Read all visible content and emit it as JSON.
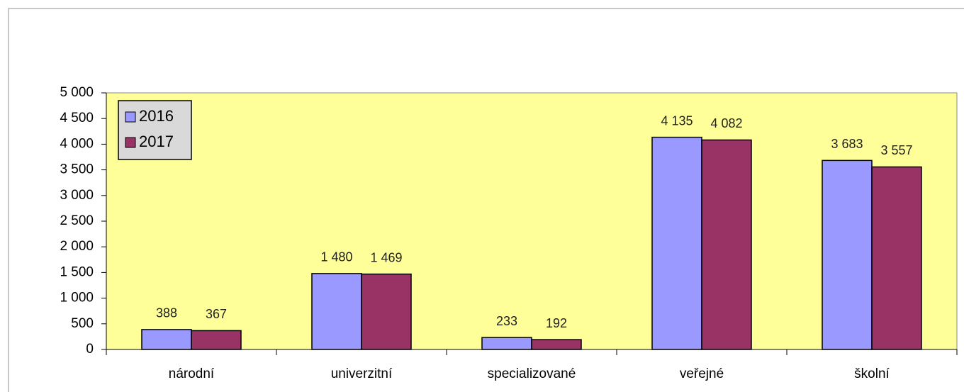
{
  "chart_data": {
    "type": "bar",
    "categories": [
      "národní",
      "univerzitní",
      "specializované",
      "veřejné",
      "školní"
    ],
    "series": [
      {
        "name": "2016",
        "color": "#9999ff",
        "values": [
          388,
          1480,
          233,
          4135,
          3683
        ],
        "value_labels": [
          "388",
          "1 480",
          "233",
          "4 135",
          "3 683"
        ]
      },
      {
        "name": "2017",
        "color": "#993366",
        "values": [
          367,
          1469,
          192,
          4082,
          3557
        ],
        "value_labels": [
          "367",
          "1 469",
          "192",
          "4 082",
          "3 557"
        ]
      }
    ],
    "ylim": [
      0,
      5000
    ],
    "yticks": [
      {
        "value": 0,
        "label": "0"
      },
      {
        "value": 500,
        "label": "500"
      },
      {
        "value": 1000,
        "label": "1 000"
      },
      {
        "value": 1500,
        "label": "1 500"
      },
      {
        "value": 2000,
        "label": "2 000"
      },
      {
        "value": 2500,
        "label": "2 500"
      },
      {
        "value": 3000,
        "label": "3 000"
      },
      {
        "value": 3500,
        "label": "3 500"
      },
      {
        "value": 4000,
        "label": "4 000"
      },
      {
        "value": 4500,
        "label": "4 500"
      },
      {
        "value": 5000,
        "label": "5 000"
      }
    ],
    "plot_background": "#ffff99",
    "legend": "top-left"
  }
}
